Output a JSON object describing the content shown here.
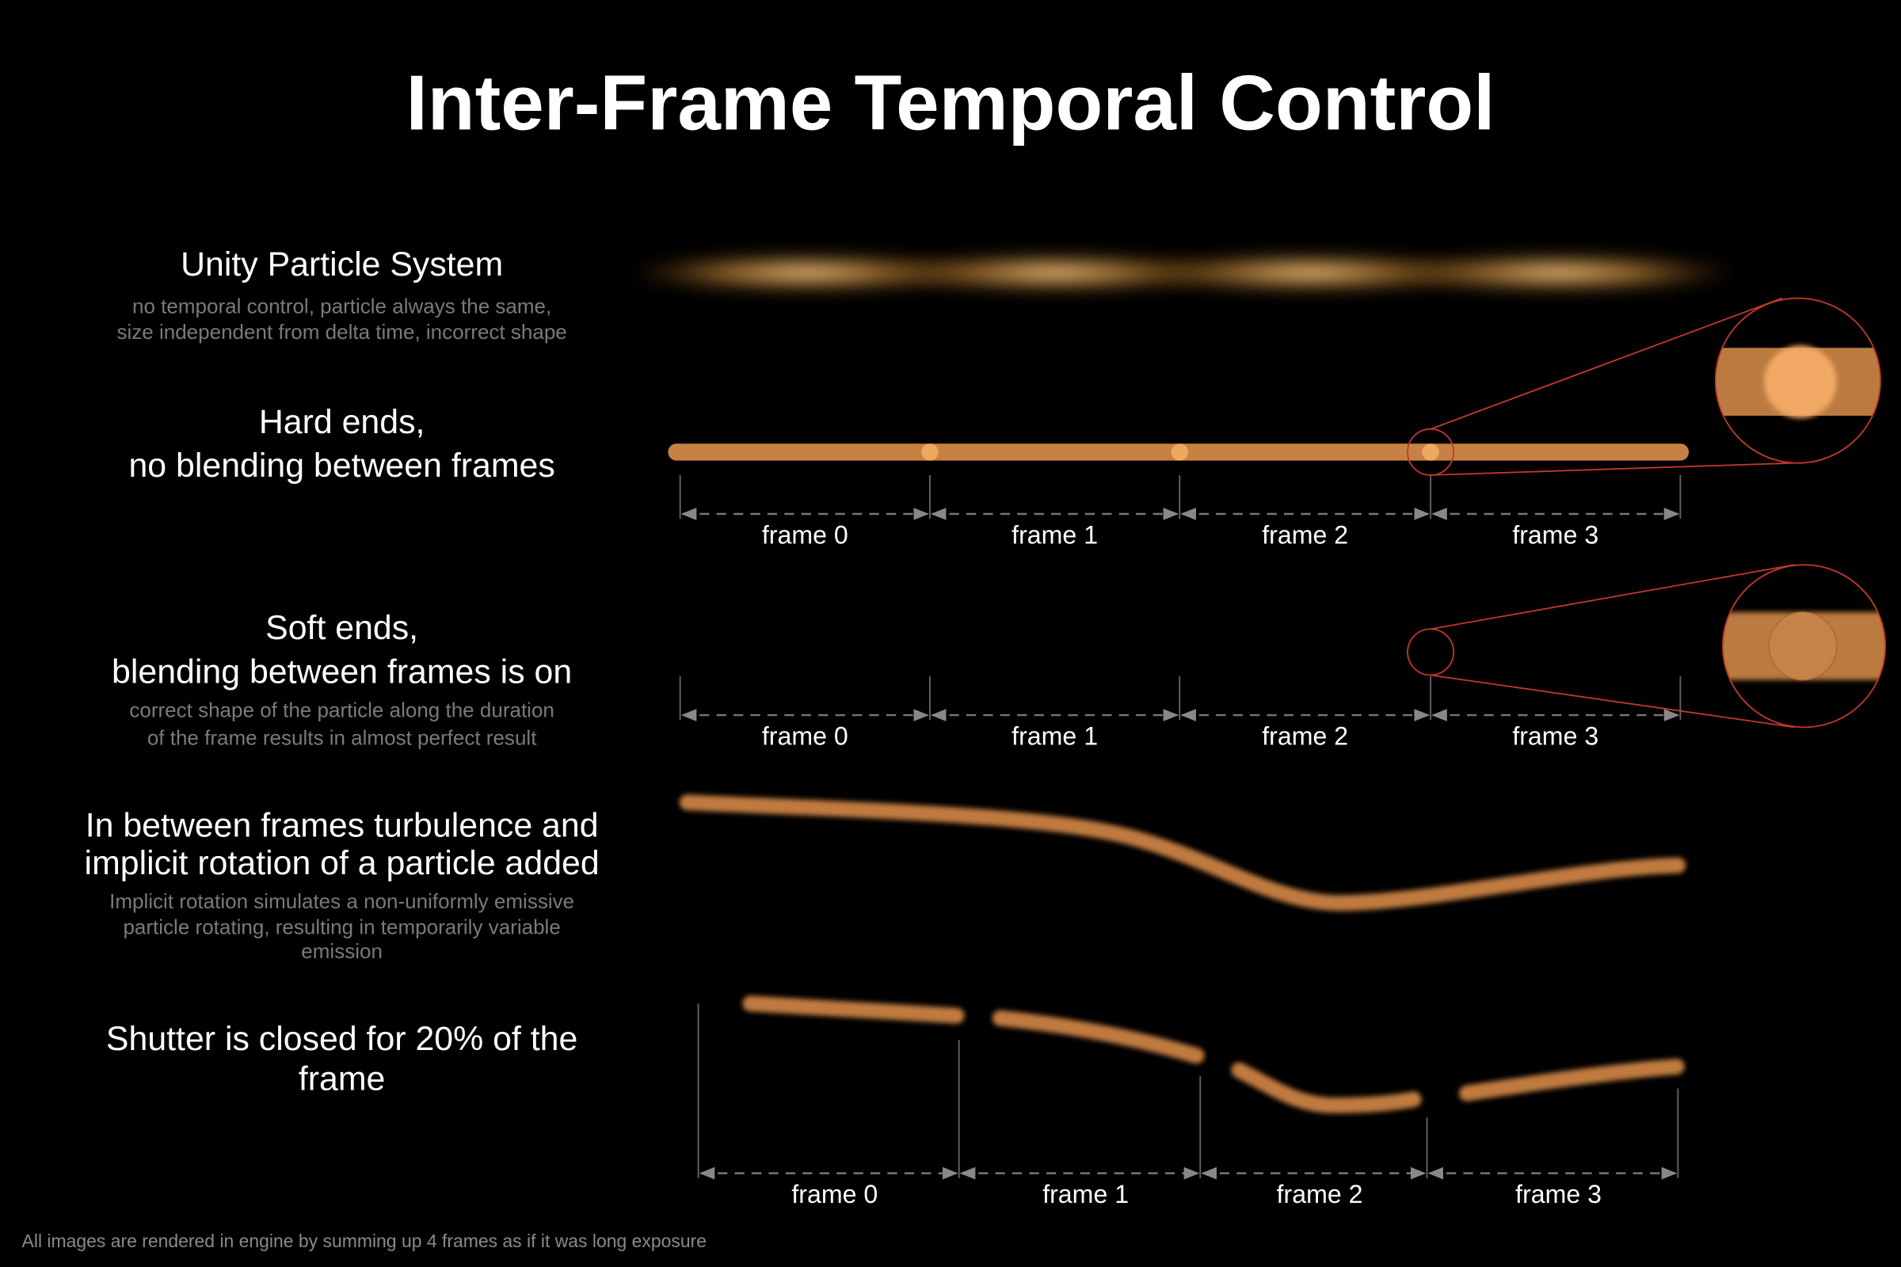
{
  "title": "Inter-Frame Temporal Control",
  "rows": [
    {
      "heading": [
        "Unity Particle System"
      ],
      "description": [
        "no temporal control, particle always the same,",
        "size independent from delta time, incorrect shape"
      ]
    },
    {
      "heading": [
        "Hard ends,",
        "no blending between frames"
      ],
      "frames": [
        "frame 0",
        "frame 1",
        "frame 2",
        "frame 3"
      ]
    },
    {
      "heading": [
        "Soft ends,",
        "blending between frames is on"
      ],
      "description": [
        "correct shape of the particle along the duration",
        "of the frame results in almost perfect result"
      ],
      "frames": [
        "frame 0",
        "frame 1",
        "frame 2",
        "frame 3"
      ]
    },
    {
      "heading": [
        "In between frames turbulence and",
        "implicit rotation of a particle added"
      ],
      "description": [
        "Implicit rotation simulates a non-uniformly emissive",
        "particle rotating, resulting in temporarily variable",
        "emission"
      ]
    },
    {
      "heading": [
        "Shutter is closed for 20% of the",
        "frame"
      ],
      "frames": [
        "frame 0",
        "frame 1",
        "frame 2",
        "frame 3"
      ]
    }
  ],
  "footer": "All images are rendered in engine by summing up 4 frames as if it was long exposure"
}
